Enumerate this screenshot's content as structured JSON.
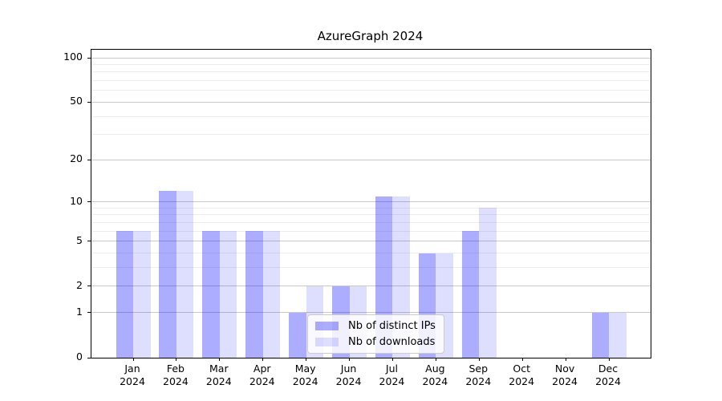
{
  "title": "AzureGraph 2024",
  "colors": {
    "background": "#ffffff",
    "spine": "#000000",
    "major_grid": "#c9c9c9",
    "minor_grid": "#ededed",
    "distinct_ips_bar": "#0000ff52",
    "downloads_bar": "#0000ff21",
    "legend_border": "#cccccc"
  },
  "chart_data": {
    "type": "bar",
    "title": "AzureGraph 2024",
    "xlabel": "",
    "ylabel": "",
    "categories": [
      "Jan 2024",
      "Feb 2024",
      "Mar 2024",
      "Apr 2024",
      "May 2024",
      "Jun 2024",
      "Jul 2024",
      "Aug 2024",
      "Sep 2024",
      "Oct 2024",
      "Nov 2024",
      "Dec 2024"
    ],
    "series": [
      {
        "name": "Nb of distinct IPs",
        "color": "#0000ff52",
        "values": [
          6,
          12,
          6,
          6,
          1,
          2,
          11,
          4,
          6,
          0,
          0,
          1
        ]
      },
      {
        "name": "Nb of downloads",
        "color": "#0000ff21",
        "values": [
          6,
          12,
          6,
          6,
          2,
          2,
          11,
          4,
          9,
          0,
          0,
          1
        ]
      }
    ],
    "yscale": "log1p",
    "ylim": [
      0,
      113
    ],
    "yticks_major": [
      0,
      1,
      2,
      5,
      10,
      20,
      50,
      100
    ],
    "yticks_minor": [
      3,
      4,
      6,
      7,
      8,
      9,
      30,
      40,
      60,
      70,
      80,
      90
    ],
    "grid": "both",
    "legend_position": "lower center (inside axes)"
  }
}
